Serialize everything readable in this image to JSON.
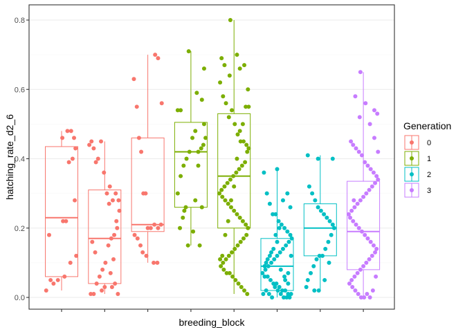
{
  "chart_data": {
    "type": "boxplot_with_jitter",
    "xlabel": "breeding_block",
    "ylabel": "hatching_rate_d2_6",
    "ylim": [
      0,
      0.8
    ],
    "yticks": [
      0.0,
      0.2,
      0.4,
      0.6,
      0.8
    ],
    "ytick_labels": [
      "0.0",
      "0.2",
      "0.4",
      "0.6",
      "0.8"
    ],
    "grid": true,
    "legend": {
      "title": "Generation",
      "placement": "right",
      "entries": [
        {
          "label": "0",
          "color": "#F8766D"
        },
        {
          "label": "1",
          "color": "#7CAE00"
        },
        {
          "label": "2",
          "color": "#00BFC4"
        },
        {
          "label": "3",
          "color": "#C77CFF"
        }
      ]
    },
    "boxes": [
      {
        "slot": 1,
        "generation": "0",
        "min": 0.02,
        "q1": 0.06,
        "median": 0.23,
        "q3": 0.435,
        "max": 0.48
      },
      {
        "slot": 2,
        "generation": "0",
        "min": 0.01,
        "q1": 0.04,
        "median": 0.17,
        "q3": 0.31,
        "max": 0.45
      },
      {
        "slot": 3,
        "generation": "0",
        "min": 0.1,
        "q1": 0.19,
        "median": 0.21,
        "q3": 0.46,
        "max": 0.7
      },
      {
        "slot": 4,
        "generation": "1",
        "min": 0.15,
        "q1": 0.26,
        "median": 0.42,
        "q3": 0.505,
        "max": 0.71
      },
      {
        "slot": 5,
        "generation": "1",
        "min": 0.01,
        "q1": 0.2,
        "median": 0.35,
        "q3": 0.53,
        "max": 0.8
      },
      {
        "slot": 6,
        "generation": "2",
        "min": 0.0,
        "q1": 0.02,
        "median": 0.09,
        "q3": 0.17,
        "max": 0.37
      },
      {
        "slot": 7,
        "generation": "2",
        "min": 0.02,
        "q1": 0.12,
        "median": 0.2,
        "q3": 0.27,
        "max": 0.41
      },
      {
        "slot": 8,
        "generation": "3",
        "min": 0.0,
        "q1": 0.08,
        "median": 0.19,
        "q3": 0.335,
        "max": 0.65
      }
    ],
    "points": [
      {
        "slot": 1,
        "x": [
          -0.42,
          -0.34,
          -0.22,
          -0.1,
          0.02,
          0.16,
          0.26,
          0.34,
          0.38,
          0.3,
          0.2,
          0.04,
          0.12,
          0.36,
          0.4,
          0.24,
          0.08,
          -0.3
        ],
        "y": [
          0.02,
          0.18,
          0.04,
          0.05,
          0.46,
          0.48,
          0.48,
          0.46,
          0.43,
          0.4,
          0.39,
          0.22,
          0.22,
          0.28,
          0.12,
          0.1,
          0.06,
          0.05
        ]
      },
      {
        "slot": 2,
        "x": [
          -0.42,
          -0.36,
          -0.3,
          -0.24,
          -0.18,
          -0.1,
          -0.02,
          0.06,
          0.14,
          0.22,
          0.3,
          0.38,
          0.4,
          0.34,
          0.26,
          0.18,
          0.1,
          0.02,
          -0.06,
          -0.14,
          -0.22,
          -0.3,
          -0.38,
          0.2,
          0.28,
          0.36,
          -0.08,
          0.0,
          0.12,
          0.32,
          -0.34,
          -0.26,
          0.24,
          0.16
        ],
        "y": [
          0.44,
          0.45,
          0.43,
          0.39,
          0.4,
          0.45,
          0.36,
          0.3,
          0.32,
          0.28,
          0.3,
          0.28,
          0.25,
          0.2,
          0.18,
          0.17,
          0.15,
          0.1,
          0.08,
          0.06,
          0.04,
          0.01,
          0.01,
          0.03,
          0.04,
          0.01,
          0.02,
          0.03,
          0.27,
          0.22,
          0.16,
          0.13,
          0.11,
          0.07
        ]
      },
      {
        "slot": 3,
        "x": [
          -0.38,
          0.2,
          0.28,
          0.38,
          -0.3,
          -0.24,
          -0.18,
          -0.12,
          -0.06,
          0.0,
          0.08,
          0.18,
          0.28,
          0.36,
          -0.36,
          -0.28,
          -0.2,
          -0.14,
          -0.04,
          0.16,
          0.26
        ],
        "y": [
          0.63,
          0.7,
          0.69,
          0.56,
          0.55,
          0.46,
          0.42,
          0.3,
          0.3,
          0.2,
          0.2,
          0.21,
          0.2,
          0.21,
          0.18,
          0.17,
          0.15,
          0.13,
          0.12,
          0.1,
          0.1
        ]
      },
      {
        "slot": 4,
        "x": [
          -0.06,
          0.36,
          -0.28,
          0.16,
          0.3,
          -0.36,
          0.36,
          0.4,
          0.34,
          0.28,
          0.2,
          0.12,
          0.04,
          -0.04,
          -0.12,
          -0.2,
          -0.28,
          -0.36,
          0.2,
          0.3,
          0.12,
          -0.14,
          -0.22,
          -0.3,
          0.06,
          -0.08,
          0.24,
          -0.18
        ],
        "y": [
          0.71,
          0.66,
          0.54,
          0.59,
          0.57,
          0.54,
          0.5,
          0.46,
          0.44,
          0.43,
          0.42,
          0.48,
          0.46,
          0.42,
          0.4,
          0.38,
          0.35,
          0.3,
          0.38,
          0.26,
          0.28,
          0.26,
          0.23,
          0.2,
          0.19,
          0.15,
          0.15,
          0.25
        ]
      },
      {
        "slot": 5,
        "x": [
          -0.1,
          -0.34,
          -0.26,
          0.08,
          0.28,
          0.16,
          -0.12,
          0.38,
          -0.38,
          -0.3,
          -0.22,
          -0.14,
          -0.06,
          0.02,
          0.1,
          0.18,
          0.26,
          0.34,
          0.4,
          0.36,
          0.3,
          0.22,
          0.14,
          0.06,
          -0.02,
          -0.1,
          -0.18,
          -0.26,
          -0.34,
          -0.4,
          -0.32,
          -0.24,
          -0.16,
          -0.08,
          0.0,
          0.08,
          0.16,
          0.24,
          0.32,
          0.38,
          0.34,
          0.26,
          0.18,
          0.1,
          0.02,
          -0.06,
          -0.14,
          -0.22,
          -0.3,
          -0.38,
          -0.36,
          -0.28,
          -0.2,
          -0.12,
          -0.04,
          0.04,
          0.12,
          0.2,
          0.28,
          0.36,
          0.4,
          0.32,
          0.24,
          0.16,
          0.08,
          0.0,
          -0.08,
          -0.16,
          -0.24,
          -0.32
        ],
        "y": [
          0.8,
          0.69,
          0.67,
          0.7,
          0.67,
          0.66,
          0.64,
          0.6,
          0.62,
          0.58,
          0.56,
          0.52,
          0.54,
          0.5,
          0.47,
          0.45,
          0.45,
          0.44,
          0.43,
          0.42,
          0.39,
          0.38,
          0.37,
          0.36,
          0.35,
          0.34,
          0.33,
          0.32,
          0.31,
          0.3,
          0.29,
          0.28,
          0.27,
          0.26,
          0.25,
          0.24,
          0.23,
          0.22,
          0.21,
          0.2,
          0.18,
          0.17,
          0.16,
          0.15,
          0.14,
          0.13,
          0.12,
          0.11,
          0.1,
          0.11,
          0.09,
          0.08,
          0.07,
          0.07,
          0.06,
          0.05,
          0.04,
          0.03,
          0.02,
          0.01,
          0.55,
          0.55,
          0.5,
          0.48,
          0.4,
          0.32,
          0.28,
          0.22,
          0.18,
          0.12
        ]
      },
      {
        "slot": 6,
        "x": [
          0.0,
          -0.36,
          -0.28,
          -0.2,
          -0.12,
          -0.04,
          0.04,
          0.12,
          0.2,
          0.28,
          0.36,
          0.4,
          0.32,
          0.24,
          0.16,
          0.08,
          0.0,
          -0.08,
          -0.16,
          -0.24,
          -0.32,
          -0.4,
          -0.34,
          -0.26,
          -0.18,
          -0.1,
          -0.02,
          0.06,
          0.14,
          0.22,
          0.3,
          0.38,
          0.34,
          0.26,
          0.18,
          0.1,
          0.02,
          -0.06,
          -0.14,
          -0.22,
          -0.3,
          -0.38,
          -0.3,
          -0.2,
          -0.1,
          0.0,
          0.1,
          0.2,
          0.3,
          0.36,
          0.28,
          0.16,
          0.06,
          -0.04,
          -0.16,
          -0.26,
          -0.34,
          0.38,
          0.3,
          0.22
        ],
        "y": [
          0.37,
          0.36,
          0.3,
          0.27,
          0.24,
          0.24,
          0.22,
          0.21,
          0.2,
          0.19,
          0.18,
          0.17,
          0.16,
          0.15,
          0.14,
          0.13,
          0.12,
          0.11,
          0.1,
          0.09,
          0.08,
          0.07,
          0.06,
          0.06,
          0.05,
          0.04,
          0.04,
          0.03,
          0.02,
          0.02,
          0.01,
          0.01,
          0.0,
          0.0,
          0.0,
          0.01,
          0.02,
          0.03,
          0.0,
          0.01,
          0.02,
          0.01,
          0.1,
          0.12,
          0.14,
          0.16,
          0.08,
          0.06,
          0.04,
          0.26,
          0.3,
          0.28,
          0.2,
          0.18,
          0.13,
          0.11,
          0.09,
          0.12,
          0.07,
          0.05
        ]
      },
      {
        "slot": 7,
        "x": [
          -0.34,
          -0.06,
          0.34,
          -0.3,
          -0.22,
          -0.14,
          -0.06,
          0.02,
          0.1,
          0.18,
          0.26,
          0.34,
          0.38,
          0.3,
          0.22,
          0.14,
          0.06,
          -0.02,
          -0.1,
          -0.18,
          -0.26,
          -0.34,
          -0.38,
          0.24,
          0.12,
          -0.04,
          -0.16
        ],
        "y": [
          0.41,
          0.4,
          0.4,
          0.32,
          0.3,
          0.28,
          0.26,
          0.25,
          0.24,
          0.23,
          0.22,
          0.21,
          0.2,
          0.18,
          0.16,
          0.14,
          0.12,
          0.12,
          0.11,
          0.09,
          0.07,
          0.05,
          0.03,
          0.1,
          0.05,
          0.02,
          0.02
        ]
      },
      {
        "slot": 8,
        "x": [
          -0.08,
          -0.22,
          0.3,
          0.38,
          -0.34,
          -0.28,
          -0.2,
          -0.12,
          -0.04,
          0.04,
          0.12,
          0.2,
          0.28,
          0.36,
          0.4,
          0.32,
          0.24,
          0.16,
          0.08,
          0.0,
          -0.08,
          -0.16,
          -0.24,
          -0.32,
          -0.4,
          -0.36,
          -0.28,
          -0.2,
          -0.12,
          -0.04,
          0.04,
          0.12,
          0.2,
          0.28,
          0.36,
          0.32,
          0.24,
          0.16,
          0.08,
          0.0,
          -0.08,
          -0.16,
          -0.24,
          -0.32,
          -0.38,
          -0.3,
          -0.22,
          -0.14,
          -0.06,
          0.02,
          0.1,
          0.18,
          0.26,
          0.34,
          0.4,
          0.3,
          0.18,
          0.06,
          -0.1,
          -0.26
        ],
        "y": [
          0.65,
          0.58,
          0.54,
          0.53,
          0.45,
          0.44,
          0.43,
          0.42,
          0.41,
          0.39,
          0.38,
          0.37,
          0.36,
          0.35,
          0.34,
          0.33,
          0.32,
          0.31,
          0.3,
          0.29,
          0.28,
          0.27,
          0.26,
          0.25,
          0.24,
          0.23,
          0.22,
          0.21,
          0.2,
          0.19,
          0.18,
          0.17,
          0.16,
          0.15,
          0.14,
          0.13,
          0.12,
          0.11,
          0.1,
          0.09,
          0.08,
          0.07,
          0.06,
          0.05,
          0.04,
          0.03,
          0.02,
          0.01,
          0.0,
          0.0,
          0.01,
          0.0,
          0.02,
          0.06,
          0.42,
          0.46,
          0.5,
          0.56,
          0.52,
          0.28
        ]
      }
    ]
  }
}
